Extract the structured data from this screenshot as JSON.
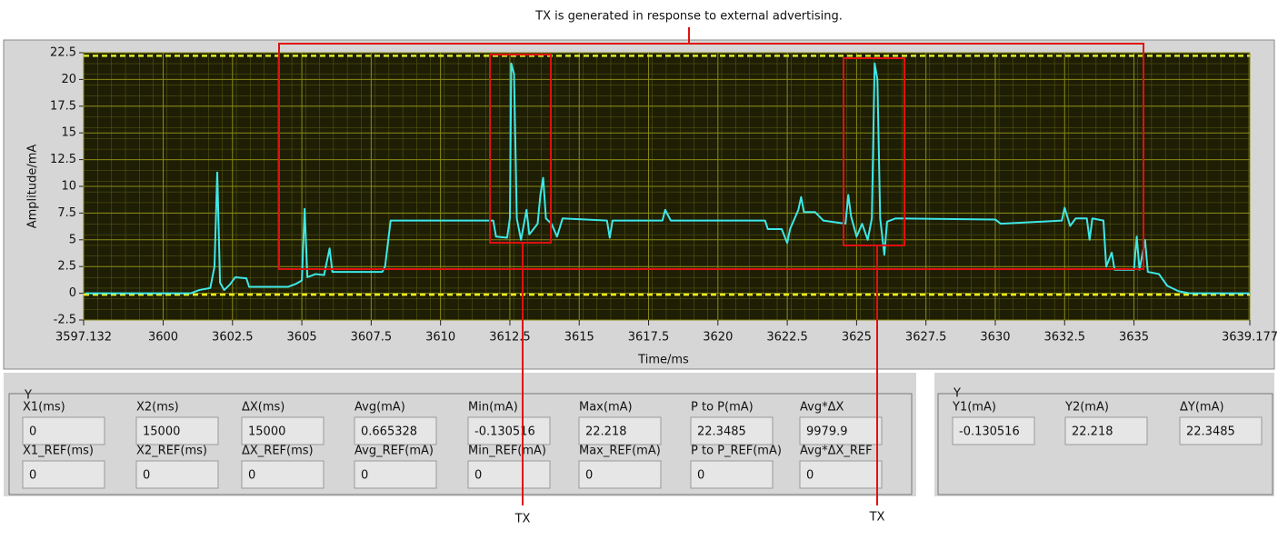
{
  "chart_data": {
    "type": "line",
    "x_label": "Time/ms",
    "y_label": "Amplitude/mA",
    "color": "#3ee8e8",
    "grid": true,
    "x": [
      3597.2,
      3601.0,
      3601.3,
      3601.7,
      3601.85,
      3601.95,
      3602.05,
      3602.2,
      3602.4,
      3602.6,
      3603.0,
      3603.1,
      3604.5,
      3604.8,
      3605.0,
      3605.1,
      3605.2,
      3605.5,
      3605.8,
      3606.0,
      3606.1,
      3607.9,
      3608.0,
      3608.2,
      3611.9,
      3612.0,
      3612.4,
      3612.5,
      3612.55,
      3612.65,
      3612.75,
      3612.9,
      3613.1,
      3613.2,
      3613.5,
      3613.6,
      3613.7,
      3613.8,
      3614.0,
      3614.2,
      3614.4,
      3616.0,
      3616.1,
      3616.2,
      3618.0,
      3618.1,
      3618.3,
      3621.7,
      3621.8,
      3622.3,
      3622.5,
      3622.6,
      3622.9,
      3623.0,
      3623.1,
      3623.5,
      3623.8,
      3624.6,
      3624.7,
      3624.8,
      3625.0,
      3625.2,
      3625.4,
      3625.55,
      3625.65,
      3625.75,
      3625.85,
      3626.0,
      3626.1,
      3626.4,
      3630.0,
      3630.2,
      3632.4,
      3632.5,
      3632.7,
      3632.9,
      3633.3,
      3633.4,
      3633.5,
      3633.9,
      3634.0,
      3634.2,
      3634.3,
      3635.0,
      3635.1,
      3635.2,
      3635.4,
      3635.5,
      3635.9,
      3636.2,
      3636.6,
      3637.0,
      3639.15
    ],
    "values": [
      0,
      0,
      0.3,
      0.5,
      2.5,
      11.3,
      1.0,
      0.3,
      0.8,
      1.5,
      1.4,
      0.6,
      0.6,
      0.9,
      1.2,
      7.9,
      1.5,
      1.8,
      1.7,
      4.2,
      2.0,
      2.0,
      2.5,
      6.8,
      6.8,
      5.3,
      5.2,
      7.0,
      21.5,
      20.5,
      7.0,
      5.0,
      7.8,
      5.5,
      6.5,
      9.2,
      10.8,
      7.0,
      6.5,
      5.3,
      7.0,
      6.8,
      5.2,
      6.8,
      6.8,
      7.8,
      6.8,
      6.8,
      6.0,
      6.0,
      4.7,
      6.0,
      7.8,
      9.0,
      7.6,
      7.6,
      6.8,
      6.5,
      9.2,
      7.2,
      5.3,
      6.5,
      5.0,
      7.0,
      21.5,
      20.0,
      7.0,
      3.6,
      6.7,
      7.0,
      6.9,
      6.5,
      6.8,
      8.0,
      6.3,
      7.0,
      7.0,
      5.0,
      7.0,
      6.8,
      2.5,
      3.8,
      2.2,
      2.2,
      5.3,
      2.2,
      5.0,
      2.0,
      1.8,
      0.7,
      0.2,
      0,
      0
    ],
    "xlim": [
      3597.132,
      3639.177
    ],
    "ylim": [
      -2.5,
      22.5
    ],
    "xticks": [
      3597.132,
      3600,
      3602.5,
      3605,
      3607.5,
      3610,
      3612.5,
      3615,
      3617.5,
      3620,
      3622.5,
      3625,
      3627.5,
      3630,
      3632.5,
      3635,
      3639.177
    ],
    "yticks": [
      -2.5,
      0,
      2.5,
      5,
      7.5,
      10,
      12.5,
      15,
      17.5,
      20,
      22.5
    ]
  },
  "annotations": {
    "top": "TX is generated in response to external advertising.",
    "tx": [
      "TX",
      "TX"
    ]
  },
  "measurements": {
    "title": "Y",
    "rows": [
      [
        {
          "label": "X1(ms)",
          "value": 0
        },
        {
          "label": "X2(ms)",
          "value": 15000
        },
        {
          "label": "ΔX(ms)",
          "value": 15000
        },
        {
          "label": "Avg(mA)",
          "value": 0.665328
        },
        {
          "label": "Min(mA)",
          "value": -0.130516
        },
        {
          "label": "Max(mA)",
          "value": 22.218
        },
        {
          "label": "P to P(mA)",
          "value": 22.3485
        },
        {
          "label": "Avg*ΔX",
          "value": 9979.9
        }
      ],
      [
        {
          "label": "X1_REF(ms)",
          "value": 0
        },
        {
          "label": "X2_REF(ms)",
          "value": 0
        },
        {
          "label": "ΔX_REF(ms)",
          "value": 0
        },
        {
          "label": "Avg_REF(mA)",
          "value": 0
        },
        {
          "label": "Min_REF(mA)",
          "value": 0
        },
        {
          "label": "Max_REF(mA)",
          "value": 0
        },
        {
          "label": "P to P_REF(mA)",
          "value": 0
        },
        {
          "label": "Avg*ΔX_REF",
          "value": 0
        }
      ]
    ]
  },
  "cursors": {
    "title": "Y",
    "fields": [
      {
        "label": "Y1(mA)",
        "value": -0.130516
      },
      {
        "label": "Y2(mA)",
        "value": 22.218
      },
      {
        "label": "ΔY(mA)",
        "value": 22.3485
      }
    ]
  }
}
